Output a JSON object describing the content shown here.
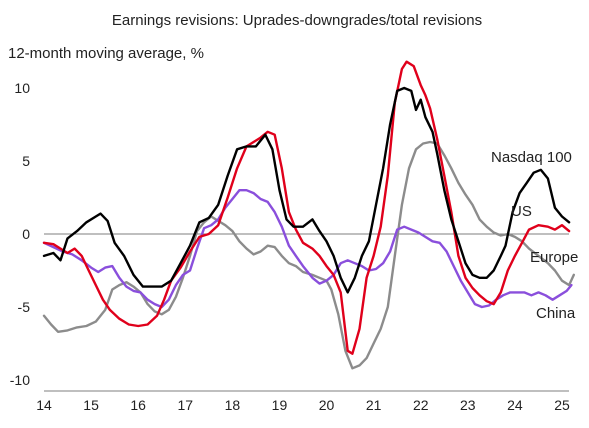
{
  "chart_data": {
    "type": "line",
    "title": "Earnings revisions: Uprades-downgrades/total revisions",
    "ylabel": "12-month moving average, %",
    "xlabel": "",
    "xlim": [
      2014.0,
      2025.3
    ],
    "ylim": [
      -10,
      12
    ],
    "yticks": [
      10,
      5,
      0,
      -5,
      -10
    ],
    "xticks": [
      14,
      15,
      16,
      17,
      18,
      19,
      20,
      21,
      22,
      23,
      24,
      25
    ],
    "zero_line": true,
    "grid": false,
    "legend": "inline labels",
    "series": [
      {
        "name": "Nasdaq 100",
        "color": "#000000",
        "points": [
          [
            2014.0,
            -1.5
          ],
          [
            2014.2,
            -1.3
          ],
          [
            2014.35,
            -1.8
          ],
          [
            2014.5,
            -0.3
          ],
          [
            2014.7,
            0.2
          ],
          [
            2014.9,
            0.8
          ],
          [
            2015.1,
            1.2
          ],
          [
            2015.2,
            1.4
          ],
          [
            2015.35,
            0.9
          ],
          [
            2015.5,
            -0.6
          ],
          [
            2015.7,
            -1.5
          ],
          [
            2015.9,
            -2.8
          ],
          [
            2016.1,
            -3.6
          ],
          [
            2016.3,
            -3.6
          ],
          [
            2016.5,
            -3.6
          ],
          [
            2016.7,
            -3.2
          ],
          [
            2016.9,
            -2.0
          ],
          [
            2017.1,
            -0.8
          ],
          [
            2017.3,
            0.8
          ],
          [
            2017.5,
            1.1
          ],
          [
            2017.7,
            2.0
          ],
          [
            2017.9,
            4.0
          ],
          [
            2018.1,
            5.8
          ],
          [
            2018.3,
            6.0
          ],
          [
            2018.5,
            6.0
          ],
          [
            2018.7,
            6.8
          ],
          [
            2018.85,
            5.8
          ],
          [
            2019.0,
            3.0
          ],
          [
            2019.15,
            1.0
          ],
          [
            2019.3,
            0.5
          ],
          [
            2019.5,
            0.5
          ],
          [
            2019.7,
            1.0
          ],
          [
            2019.85,
            0.2
          ],
          [
            2020.0,
            -0.5
          ],
          [
            2020.15,
            -1.5
          ],
          [
            2020.3,
            -3.0
          ],
          [
            2020.45,
            -4.0
          ],
          [
            2020.6,
            -3.0
          ],
          [
            2020.75,
            -1.5
          ],
          [
            2020.9,
            -0.5
          ],
          [
            2021.05,
            2.0
          ],
          [
            2021.2,
            4.5
          ],
          [
            2021.35,
            7.5
          ],
          [
            2021.5,
            9.8
          ],
          [
            2021.65,
            10.0
          ],
          [
            2021.8,
            9.8
          ],
          [
            2021.9,
            8.5
          ],
          [
            2022.0,
            9.2
          ],
          [
            2022.1,
            8.0
          ],
          [
            2022.25,
            7.0
          ],
          [
            2022.35,
            5.5
          ],
          [
            2022.5,
            3.0
          ],
          [
            2022.65,
            1.0
          ],
          [
            2022.8,
            -0.5
          ],
          [
            2022.95,
            -2.0
          ],
          [
            2023.1,
            -2.8
          ],
          [
            2023.25,
            -3.0
          ],
          [
            2023.4,
            -3.0
          ],
          [
            2023.55,
            -2.5
          ],
          [
            2023.7,
            -1.5
          ],
          [
            2023.8,
            -0.8
          ],
          [
            2023.95,
            1.5
          ],
          [
            2024.1,
            2.8
          ],
          [
            2024.25,
            3.5
          ],
          [
            2024.4,
            4.2
          ],
          [
            2024.55,
            4.4
          ],
          [
            2024.7,
            3.8
          ],
          [
            2024.85,
            1.8
          ],
          [
            2025.0,
            1.2
          ],
          [
            2025.15,
            0.8
          ]
        ]
      },
      {
        "name": "US",
        "color": "#e0001b",
        "points": [
          [
            2014.0,
            -0.6
          ],
          [
            2014.2,
            -0.7
          ],
          [
            2014.35,
            -1.0
          ],
          [
            2014.5,
            -1.3
          ],
          [
            2014.65,
            -1.0
          ],
          [
            2014.8,
            -1.5
          ],
          [
            2014.95,
            -2.5
          ],
          [
            2015.1,
            -3.5
          ],
          [
            2015.25,
            -4.5
          ],
          [
            2015.4,
            -5.2
          ],
          [
            2015.6,
            -5.8
          ],
          [
            2015.8,
            -6.2
          ],
          [
            2016.0,
            -6.3
          ],
          [
            2016.2,
            -6.2
          ],
          [
            2016.4,
            -5.6
          ],
          [
            2016.55,
            -4.5
          ],
          [
            2016.7,
            -3.2
          ],
          [
            2016.9,
            -2.3
          ],
          [
            2017.1,
            -1.2
          ],
          [
            2017.3,
            -0.2
          ],
          [
            2017.5,
            0.0
          ],
          [
            2017.7,
            0.6
          ],
          [
            2017.9,
            2.5
          ],
          [
            2018.1,
            4.5
          ],
          [
            2018.3,
            6.0
          ],
          [
            2018.45,
            6.3
          ],
          [
            2018.6,
            6.6
          ],
          [
            2018.75,
            7.0
          ],
          [
            2018.9,
            6.8
          ],
          [
            2019.05,
            4.5
          ],
          [
            2019.2,
            1.5
          ],
          [
            2019.35,
            0.3
          ],
          [
            2019.5,
            -0.6
          ],
          [
            2019.7,
            -1.0
          ],
          [
            2019.85,
            -1.5
          ],
          [
            2020.0,
            -2.2
          ],
          [
            2020.15,
            -2.8
          ],
          [
            2020.3,
            -4.0
          ],
          [
            2020.45,
            -8.0
          ],
          [
            2020.55,
            -8.2
          ],
          [
            2020.7,
            -6.5
          ],
          [
            2020.85,
            -3.0
          ],
          [
            2021.0,
            -1.5
          ],
          [
            2021.15,
            0.5
          ],
          [
            2021.3,
            4.0
          ],
          [
            2021.45,
            9.0
          ],
          [
            2021.6,
            11.3
          ],
          [
            2021.7,
            11.8
          ],
          [
            2021.85,
            11.5
          ],
          [
            2022.0,
            10.2
          ],
          [
            2022.1,
            9.5
          ],
          [
            2022.2,
            8.6
          ],
          [
            2022.35,
            6.5
          ],
          [
            2022.5,
            4.0
          ],
          [
            2022.65,
            1.5
          ],
          [
            2022.8,
            -1.5
          ],
          [
            2022.95,
            -3.0
          ],
          [
            2023.1,
            -3.7
          ],
          [
            2023.25,
            -4.2
          ],
          [
            2023.4,
            -4.6
          ],
          [
            2023.55,
            -4.8
          ],
          [
            2023.7,
            -4.0
          ],
          [
            2023.85,
            -2.5
          ],
          [
            2024.0,
            -1.5
          ],
          [
            2024.15,
            -0.6
          ],
          [
            2024.3,
            0.3
          ],
          [
            2024.5,
            0.6
          ],
          [
            2024.7,
            0.5
          ],
          [
            2024.85,
            0.3
          ],
          [
            2025.0,
            0.6
          ],
          [
            2025.15,
            0.2
          ]
        ]
      },
      {
        "name": "Europe",
        "color": "#8c8c8c",
        "points": [
          [
            2014.0,
            -5.6
          ],
          [
            2014.15,
            -6.2
          ],
          [
            2014.3,
            -6.7
          ],
          [
            2014.5,
            -6.6
          ],
          [
            2014.7,
            -6.4
          ],
          [
            2014.9,
            -6.3
          ],
          [
            2015.1,
            -6.0
          ],
          [
            2015.3,
            -5.2
          ],
          [
            2015.45,
            -3.8
          ],
          [
            2015.6,
            -3.5
          ],
          [
            2015.75,
            -3.3
          ],
          [
            2015.9,
            -3.6
          ],
          [
            2016.05,
            -4.0
          ],
          [
            2016.2,
            -4.8
          ],
          [
            2016.35,
            -5.3
          ],
          [
            2016.5,
            -5.5
          ],
          [
            2016.65,
            -5.2
          ],
          [
            2016.8,
            -4.3
          ],
          [
            2016.95,
            -3.0
          ],
          [
            2017.1,
            -1.5
          ],
          [
            2017.25,
            0.2
          ],
          [
            2017.4,
            0.8
          ],
          [
            2017.55,
            1.2
          ],
          [
            2017.7,
            0.9
          ],
          [
            2017.85,
            0.6
          ],
          [
            2018.0,
            0.2
          ],
          [
            2018.15,
            -0.5
          ],
          [
            2018.3,
            -1.0
          ],
          [
            2018.45,
            -1.4
          ],
          [
            2018.6,
            -1.2
          ],
          [
            2018.75,
            -0.8
          ],
          [
            2018.9,
            -0.9
          ],
          [
            2019.05,
            -1.5
          ],
          [
            2019.2,
            -2.0
          ],
          [
            2019.35,
            -2.2
          ],
          [
            2019.5,
            -2.6
          ],
          [
            2019.7,
            -2.8
          ],
          [
            2019.85,
            -3.0
          ],
          [
            2020.0,
            -3.2
          ],
          [
            2020.1,
            -3.8
          ],
          [
            2020.25,
            -5.5
          ],
          [
            2020.4,
            -8.0
          ],
          [
            2020.55,
            -9.2
          ],
          [
            2020.7,
            -9.0
          ],
          [
            2020.85,
            -8.5
          ],
          [
            2021.0,
            -7.5
          ],
          [
            2021.15,
            -6.5
          ],
          [
            2021.3,
            -5.0
          ],
          [
            2021.45,
            -1.5
          ],
          [
            2021.6,
            2.0
          ],
          [
            2021.75,
            4.5
          ],
          [
            2021.9,
            5.8
          ],
          [
            2022.05,
            6.2
          ],
          [
            2022.2,
            6.3
          ],
          [
            2022.35,
            6.2
          ],
          [
            2022.5,
            5.4
          ],
          [
            2022.65,
            4.5
          ],
          [
            2022.8,
            3.5
          ],
          [
            2022.95,
            2.7
          ],
          [
            2023.1,
            2.0
          ],
          [
            2023.25,
            1.0
          ],
          [
            2023.4,
            0.5
          ],
          [
            2023.55,
            0.1
          ],
          [
            2023.7,
            -0.1
          ],
          [
            2023.85,
            0.0
          ],
          [
            2024.0,
            -0.2
          ],
          [
            2024.15,
            -0.5
          ],
          [
            2024.3,
            -1.0
          ],
          [
            2024.5,
            -1.5
          ],
          [
            2024.7,
            -2.0
          ],
          [
            2024.85,
            -2.5
          ],
          [
            2025.0,
            -3.2
          ],
          [
            2025.15,
            -3.5
          ],
          [
            2025.25,
            -2.8
          ]
        ]
      },
      {
        "name": "China",
        "color": "#8a4fdc",
        "points": [
          [
            2014.0,
            -0.6
          ],
          [
            2014.2,
            -0.9
          ],
          [
            2014.4,
            -1.2
          ],
          [
            2014.6,
            -1.4
          ],
          [
            2014.8,
            -1.8
          ],
          [
            2015.0,
            -2.3
          ],
          [
            2015.15,
            -2.6
          ],
          [
            2015.3,
            -2.3
          ],
          [
            2015.45,
            -2.2
          ],
          [
            2015.6,
            -3.0
          ],
          [
            2015.75,
            -3.6
          ],
          [
            2015.9,
            -3.9
          ],
          [
            2016.05,
            -4.0
          ],
          [
            2016.2,
            -4.5
          ],
          [
            2016.35,
            -4.8
          ],
          [
            2016.5,
            -5.0
          ],
          [
            2016.65,
            -4.5
          ],
          [
            2016.8,
            -3.5
          ],
          [
            2016.95,
            -2.8
          ],
          [
            2017.1,
            -2.5
          ],
          [
            2017.25,
            -1.0
          ],
          [
            2017.4,
            0.4
          ],
          [
            2017.55,
            0.6
          ],
          [
            2017.7,
            1.0
          ],
          [
            2017.85,
            1.8
          ],
          [
            2018.0,
            2.4
          ],
          [
            2018.15,
            3.0
          ],
          [
            2018.3,
            3.0
          ],
          [
            2018.45,
            2.8
          ],
          [
            2018.6,
            2.4
          ],
          [
            2018.75,
            2.2
          ],
          [
            2018.9,
            1.5
          ],
          [
            2019.05,
            0.5
          ],
          [
            2019.2,
            -0.8
          ],
          [
            2019.35,
            -1.5
          ],
          [
            2019.5,
            -2.2
          ],
          [
            2019.7,
            -3.0
          ],
          [
            2019.85,
            -3.4
          ],
          [
            2020.0,
            -3.2
          ],
          [
            2020.15,
            -2.8
          ],
          [
            2020.3,
            -2.0
          ],
          [
            2020.45,
            -1.8
          ],
          [
            2020.6,
            -2.0
          ],
          [
            2020.75,
            -2.2
          ],
          [
            2020.9,
            -2.5
          ],
          [
            2021.05,
            -2.4
          ],
          [
            2021.2,
            -2.0
          ],
          [
            2021.35,
            -1.2
          ],
          [
            2021.5,
            0.3
          ],
          [
            2021.65,
            0.5
          ],
          [
            2021.8,
            0.3
          ],
          [
            2021.95,
            0.1
          ],
          [
            2022.1,
            -0.2
          ],
          [
            2022.25,
            -0.5
          ],
          [
            2022.4,
            -0.6
          ],
          [
            2022.55,
            -1.2
          ],
          [
            2022.7,
            -2.2
          ],
          [
            2022.85,
            -3.2
          ],
          [
            2023.0,
            -4.0
          ],
          [
            2023.15,
            -4.8
          ],
          [
            2023.3,
            -5.0
          ],
          [
            2023.45,
            -4.9
          ],
          [
            2023.6,
            -4.5
          ],
          [
            2023.75,
            -4.2
          ],
          [
            2023.9,
            -4.0
          ],
          [
            2024.05,
            -4.0
          ],
          [
            2024.2,
            -4.0
          ],
          [
            2024.35,
            -4.2
          ],
          [
            2024.5,
            -4.0
          ],
          [
            2024.65,
            -4.2
          ],
          [
            2024.8,
            -4.5
          ],
          [
            2024.95,
            -4.2
          ],
          [
            2025.1,
            -3.9
          ],
          [
            2025.2,
            -3.5
          ]
        ]
      }
    ]
  },
  "labels": {
    "nasdaq": "Nasdaq 100",
    "us": "US",
    "europe": "Europe",
    "china": "China"
  }
}
